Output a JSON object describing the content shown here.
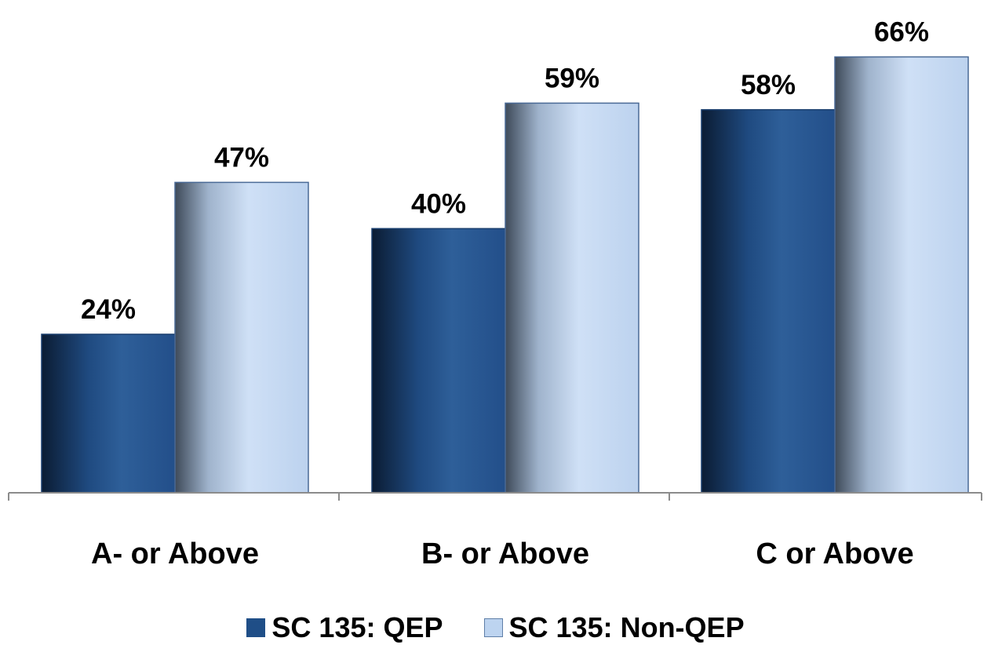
{
  "chart_data": {
    "type": "bar",
    "categories": [
      "A- or Above",
      "B- or Above",
      "C or Above"
    ],
    "series": [
      {
        "name": "SC 135: QEP",
        "values": [
          24,
          40,
          58
        ],
        "labels": [
          "24%",
          "40%",
          "58%"
        ],
        "color": "#1f4e87"
      },
      {
        "name": "SC 135: Non-QEP",
        "values": [
          47,
          59,
          66
        ],
        "labels": [
          "47%",
          "59%",
          "66%"
        ],
        "color": "#bdd4f0"
      }
    ],
    "title": "",
    "xlabel": "",
    "ylabel": "",
    "ylim": [
      0,
      72
    ],
    "grid": false,
    "legend_position": "bottom"
  }
}
